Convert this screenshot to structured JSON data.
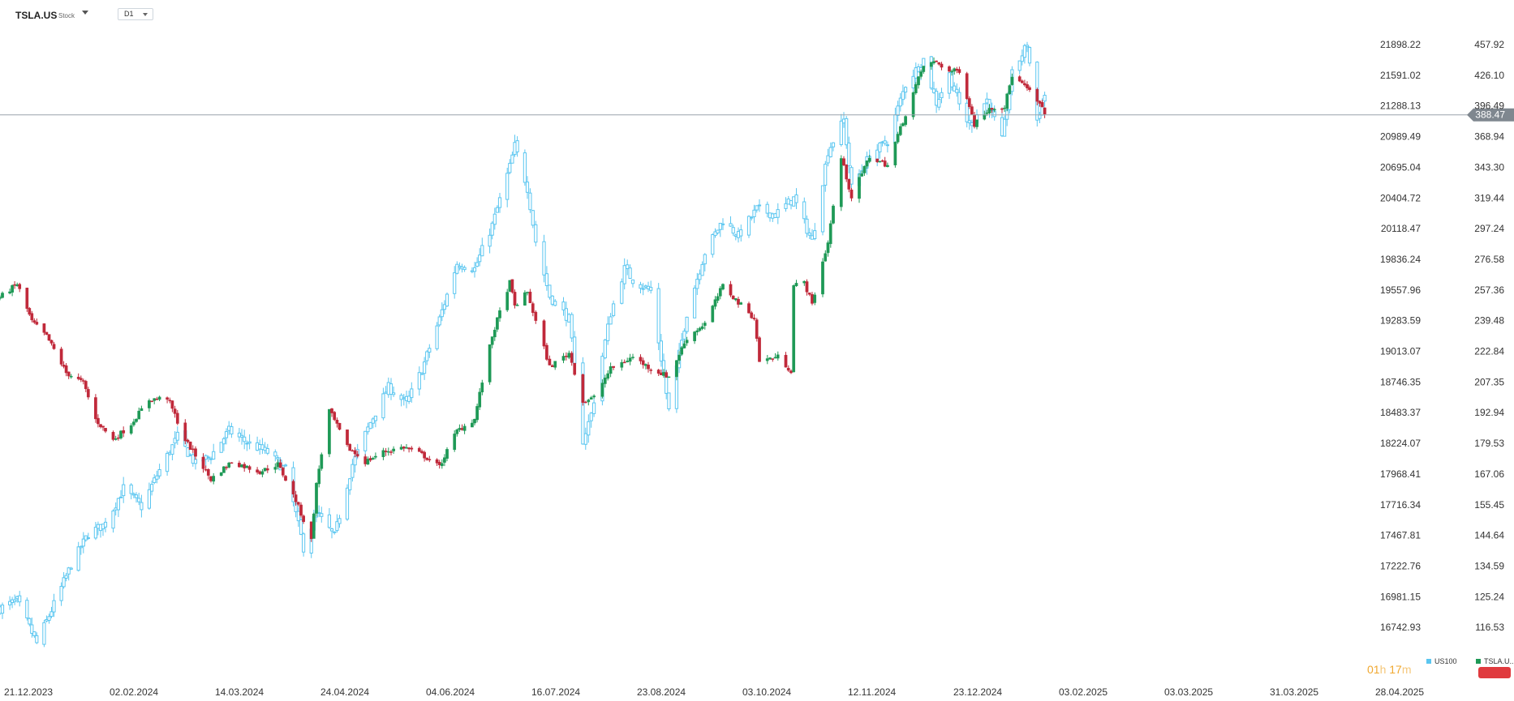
{
  "header": {
    "symbol": "TSLA.US",
    "symbol_type": "Stock",
    "timeframe": "D1"
  },
  "colors": {
    "us100_candle": "#5bc6f0",
    "tsla_up": "#1e9956",
    "tsla_down": "#c0293a",
    "price_line": "#9aa3ab",
    "price_badge": "#7f878f",
    "timer_digits": "#f0a830",
    "timer_units": "#f5c77a",
    "alert_badge": "#e03a3e"
  },
  "current_price_label": "388.47",
  "timer": {
    "hours": "01",
    "hours_unit": "h",
    "minutes": "17",
    "minutes_unit": "m"
  },
  "legend": [
    {
      "name": "US100",
      "color": "#5bc6f0"
    },
    {
      "name": "TSLA.U..",
      "color": "#1e9956"
    }
  ],
  "chart_data": {
    "type": "candlestick",
    "timeframe": "D1",
    "grid": false,
    "x_ticks": [
      "21.12.2023",
      "02.02.2024",
      "14.03.2024",
      "24.04.2024",
      "04.06.2024",
      "16.07.2024",
      "23.08.2024",
      "03.10.2024",
      "12.11.2024",
      "23.12.2024",
      "03.02.2025",
      "03.03.2025",
      "31.03.2025",
      "28.04.2025"
    ],
    "y_ticks_left": [
      21898.22,
      21591.02,
      21288.13,
      20989.49,
      20695.04,
      20404.72,
      20118.47,
      19836.24,
      19557.96,
      19283.59,
      19013.07,
      18746.35,
      18483.37,
      18224.07,
      17968.41,
      17716.34,
      17467.81,
      17222.76,
      16981.15,
      16742.93
    ],
    "y_ticks_right": [
      "457.92",
      "426.10",
      "396.49",
      "368.94",
      "343.30",
      "319.44",
      "297.24",
      "276.58",
      "257.36",
      "239.48",
      "222.84",
      "207.35",
      "192.94",
      "179.53",
      "167.06",
      "155.45",
      "144.64",
      "134.59",
      "125.24",
      "116.53"
    ],
    "series": [
      {
        "name": "US100",
        "style": "hollow-candles",
        "anchors": [
          [
            "21.12.2023",
            16890
          ],
          [
            "28.12.2023",
            16950
          ],
          [
            "05.01.2024",
            16620
          ],
          [
            "12.01.2024",
            16920
          ],
          [
            "19.01.2024",
            17230
          ],
          [
            "26.01.2024",
            17480
          ],
          [
            "02.02.2024",
            17560
          ],
          [
            "09.02.2024",
            17850
          ],
          [
            "16.02.2024",
            17700
          ],
          [
            "23.02.2024",
            18000
          ],
          [
            "01.03.2024",
            18280
          ],
          [
            "08.03.2024",
            18050
          ],
          [
            "14.03.2024",
            18120
          ],
          [
            "21.03.2024",
            18330
          ],
          [
            "28.03.2024",
            18230
          ],
          [
            "05.04.2024",
            18150
          ],
          [
            "12.04.2024",
            18000
          ],
          [
            "19.04.2024",
            17370
          ],
          [
            "24.04.2024",
            17650
          ],
          [
            "01.05.2024",
            17460
          ],
          [
            "08.05.2024",
            18050
          ],
          [
            "15.05.2024",
            18400
          ],
          [
            "22.05.2024",
            18700
          ],
          [
            "29.05.2024",
            18560
          ],
          [
            "04.06.2024",
            18850
          ],
          [
            "11.06.2024",
            19300
          ],
          [
            "18.06.2024",
            19800
          ],
          [
            "25.06.2024",
            19750
          ],
          [
            "02.07.2024",
            20150
          ],
          [
            "09.07.2024",
            20700
          ],
          [
            "11.07.2024",
            20900
          ],
          [
            "16.07.2024",
            20500
          ],
          [
            "19.07.2024",
            20000
          ],
          [
            "24.07.2024",
            19500
          ],
          [
            "31.07.2024",
            19300
          ],
          [
            "05.08.2024",
            18250
          ],
          [
            "08.08.2024",
            18470
          ],
          [
            "15.08.2024",
            19350
          ],
          [
            "20.08.2024",
            19750
          ],
          [
            "23.08.2024",
            19650
          ],
          [
            "30.08.2024",
            19550
          ],
          [
            "04.09.2024",
            18800
          ],
          [
            "06.09.2024",
            18500
          ],
          [
            "13.09.2024",
            19350
          ],
          [
            "20.09.2024",
            19900
          ],
          [
            "27.09.2024",
            20200
          ],
          [
            "03.10.2024",
            20050
          ],
          [
            "10.10.2024",
            20300
          ],
          [
            "17.10.2024",
            20250
          ],
          [
            "24.10.2024",
            20400
          ],
          [
            "31.10.2024",
            20000
          ],
          [
            "06.11.2024",
            20850
          ],
          [
            "12.11.2024",
            21150
          ],
          [
            "15.11.2024",
            20500
          ],
          [
            "22.11.2024",
            20800
          ],
          [
            "29.11.2024",
            20950
          ],
          [
            "06.12.2024",
            21500
          ],
          [
            "13.12.2024",
            21750
          ],
          [
            "18.12.2024",
            21320
          ],
          [
            "23.12.2024",
            21600
          ],
          [
            "27.12.2024",
            21300
          ],
          [
            "31.12.2024",
            21100
          ],
          [
            "07.01.2025",
            21350
          ],
          [
            "13.01.2025",
            20950
          ],
          [
            "17.01.2025",
            21600
          ],
          [
            "23.01.2025",
            21900
          ],
          [
            "27.01.2025",
            21150
          ],
          [
            "30.01.2025",
            21400
          ]
        ]
      },
      {
        "name": "TSLA.US",
        "style": "filled-candles",
        "anchors": [
          [
            "21.12.2023",
            253
          ],
          [
            "28.12.2023",
            261
          ],
          [
            "03.01.2024",
            239
          ],
          [
            "09.01.2024",
            231
          ],
          [
            "17.01.2024",
            212
          ],
          [
            "24.01.2024",
            207
          ],
          [
            "29.01.2024",
            190
          ],
          [
            "05.02.2024",
            181
          ],
          [
            "12.02.2024",
            188
          ],
          [
            "19.02.2024",
            199
          ],
          [
            "26.02.2024",
            200
          ],
          [
            "04.03.2024",
            181
          ],
          [
            "14.03.2024",
            165
          ],
          [
            "22.03.2024",
            172
          ],
          [
            "02.04.2024",
            168
          ],
          [
            "09.04.2024",
            171
          ],
          [
            "16.04.2024",
            157
          ],
          [
            "22.04.2024",
            143
          ],
          [
            "24.04.2024",
            163
          ],
          [
            "29.04.2024",
            194
          ],
          [
            "06.05.2024",
            178
          ],
          [
            "13.05.2024",
            172
          ],
          [
            "20.05.2024",
            176
          ],
          [
            "28.05.2024",
            178
          ],
          [
            "04.06.2024",
            175
          ],
          [
            "11.06.2024",
            170
          ],
          [
            "18.06.2024",
            185
          ],
          [
            "25.06.2024",
            190
          ],
          [
            "02.07.2024",
            231
          ],
          [
            "09.07.2024",
            262
          ],
          [
            "11.07.2024",
            248
          ],
          [
            "16.07.2024",
            256
          ],
          [
            "19.07.2024",
            239
          ],
          [
            "24.07.2024",
            215
          ],
          [
            "31.07.2024",
            222
          ],
          [
            "05.08.2024",
            198
          ],
          [
            "09.08.2024",
            200
          ],
          [
            "15.08.2024",
            214
          ],
          [
            "23.08.2024",
            220
          ],
          [
            "30.08.2024",
            214
          ],
          [
            "06.09.2024",
            210
          ],
          [
            "13.09.2024",
            230
          ],
          [
            "20.09.2024",
            238
          ],
          [
            "27.09.2024",
            260
          ],
          [
            "03.10.2024",
            250
          ],
          [
            "09.10.2024",
            241
          ],
          [
            "11.10.2024",
            218
          ],
          [
            "18.10.2024",
            220
          ],
          [
            "23.10.2024",
            213
          ],
          [
            "24.10.2024",
            260
          ],
          [
            "28.10.2024",
            262
          ],
          [
            "31.10.2024",
            249
          ],
          [
            "06.11.2024",
            288
          ],
          [
            "11.11.2024",
            351
          ],
          [
            "15.11.2024",
            320
          ],
          [
            "22.11.2024",
            352
          ],
          [
            "29.11.2024",
            345
          ],
          [
            "06.12.2024",
            389
          ],
          [
            "13.12.2024",
            436
          ],
          [
            "18.12.2024",
            440
          ],
          [
            "23.12.2024",
            430
          ],
          [
            "27.12.2024",
            431
          ],
          [
            "02.01.2025",
            380
          ],
          [
            "08.01.2025",
            395
          ],
          [
            "14.01.2025",
            396
          ],
          [
            "17.01.2025",
            426
          ],
          [
            "23.01.2025",
            413
          ],
          [
            "28.01.2025",
            398
          ],
          [
            "30.01.2025",
            389
          ]
        ]
      }
    ],
    "current_price": 388.47,
    "legend_position": "bottom-right"
  }
}
